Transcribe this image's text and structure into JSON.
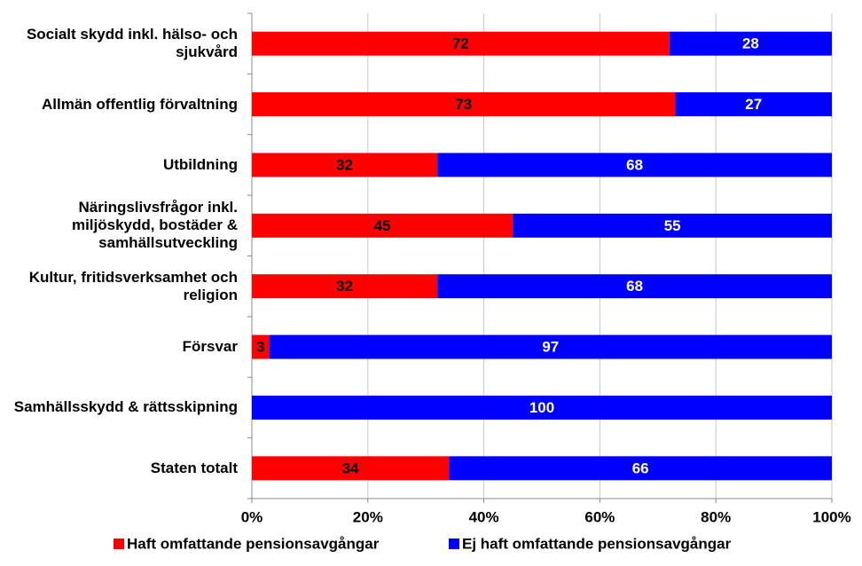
{
  "chart_data": {
    "type": "stacked_barh",
    "categories": [
      "Socialt skydd inkl. hälso- och sjukvård",
      "Allmän offentlig förvaltning",
      "Utbildning",
      "Näringslivsfrågor inkl. miljöskydd, bostäder & samhällsutveckling",
      "Kultur, fritidsverksamhet och religion",
      "Försvar",
      "Samhällsskydd & rättsskipning",
      "Staten totalt"
    ],
    "series": [
      {
        "name": "Haft omfattande pensionsavgångar",
        "color": "#ff0000",
        "values": [
          72,
          73,
          32,
          45,
          32,
          3,
          0,
          34
        ],
        "value_labels": [
          "72",
          "73",
          "32",
          "45",
          "32",
          "3",
          null,
          "34"
        ]
      },
      {
        "name": "Ej haft omfattande pensionsavgångar",
        "color": "#0000ff",
        "values": [
          28,
          27,
          68,
          55,
          68,
          97,
          100,
          66
        ]
      }
    ],
    "xlim": [
      0,
      100
    ],
    "xticks": [
      {
        "value": 0,
        "label": "0%"
      },
      {
        "value": 20,
        "label": "20%"
      },
      {
        "value": 40,
        "label": "40%"
      },
      {
        "value": 60,
        "label": "60%"
      },
      {
        "value": 80,
        "label": "80%"
      },
      {
        "value": 100,
        "label": "100%"
      }
    ],
    "grid": true,
    "legend": "bottom"
  }
}
